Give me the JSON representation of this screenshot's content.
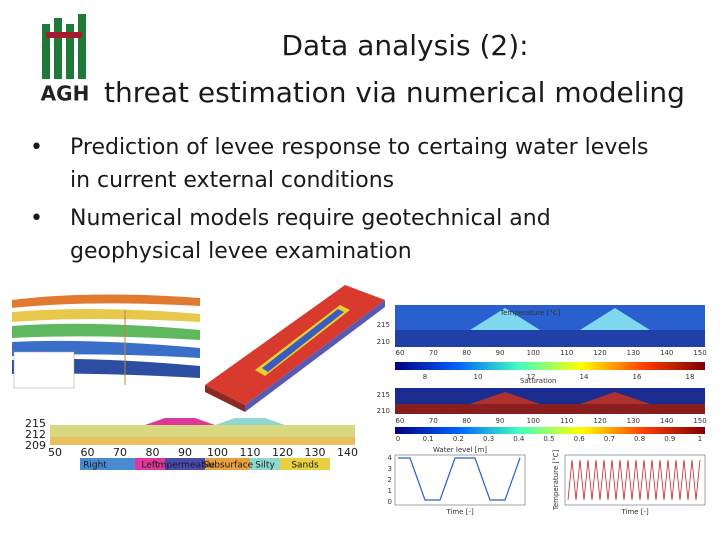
{
  "header": {
    "logo_text": "AGH",
    "title": "Data analysis (2):",
    "subtitle": "threat estimation via numerical modeling"
  },
  "bullets": [
    {
      "lines": [
        "Prediction of levee response to certaing water levels",
        "in current external conditions"
      ]
    },
    {
      "lines": [
        "Numerical models require geotechnical and",
        "geophysical levee examination"
      ]
    }
  ],
  "figures": {
    "temperature_model": {
      "title": "Temperature [°C]",
      "yticks": [
        215,
        210
      ],
      "xticks": [
        60,
        70,
        80,
        90,
        100,
        110,
        120,
        130,
        140,
        150
      ],
      "colorbar_ticks": [
        8,
        10,
        12,
        14,
        16,
        18
      ]
    },
    "saturation_model": {
      "title": "Saturation",
      "yticks": [
        215,
        210
      ],
      "xticks": [
        60,
        70,
        80,
        90,
        100,
        110,
        120,
        130,
        140,
        150
      ],
      "colorbar_ticks": [
        0,
        0.1,
        0.2,
        0.3,
        0.4,
        0.5,
        0.6,
        0.7,
        0.8,
        0.9,
        1
      ]
    },
    "cross_section": {
      "yticks": [
        215,
        212,
        209
      ],
      "xticks": [
        50,
        60,
        70,
        80,
        90,
        100,
        110,
        120,
        130,
        140
      ],
      "zones": [
        "Right",
        "Left",
        "Impermeable",
        "Subsurface",
        "Silty",
        "Sands"
      ]
    },
    "water_level_chart": {
      "title": "Water level [m]",
      "yticks": [
        0,
        1,
        2,
        3,
        4
      ],
      "xlabel": "Time [-]"
    },
    "temperature_chart": {
      "ylabel": "Temperature [°C]",
      "xlabel": "Time [-]"
    }
  }
}
